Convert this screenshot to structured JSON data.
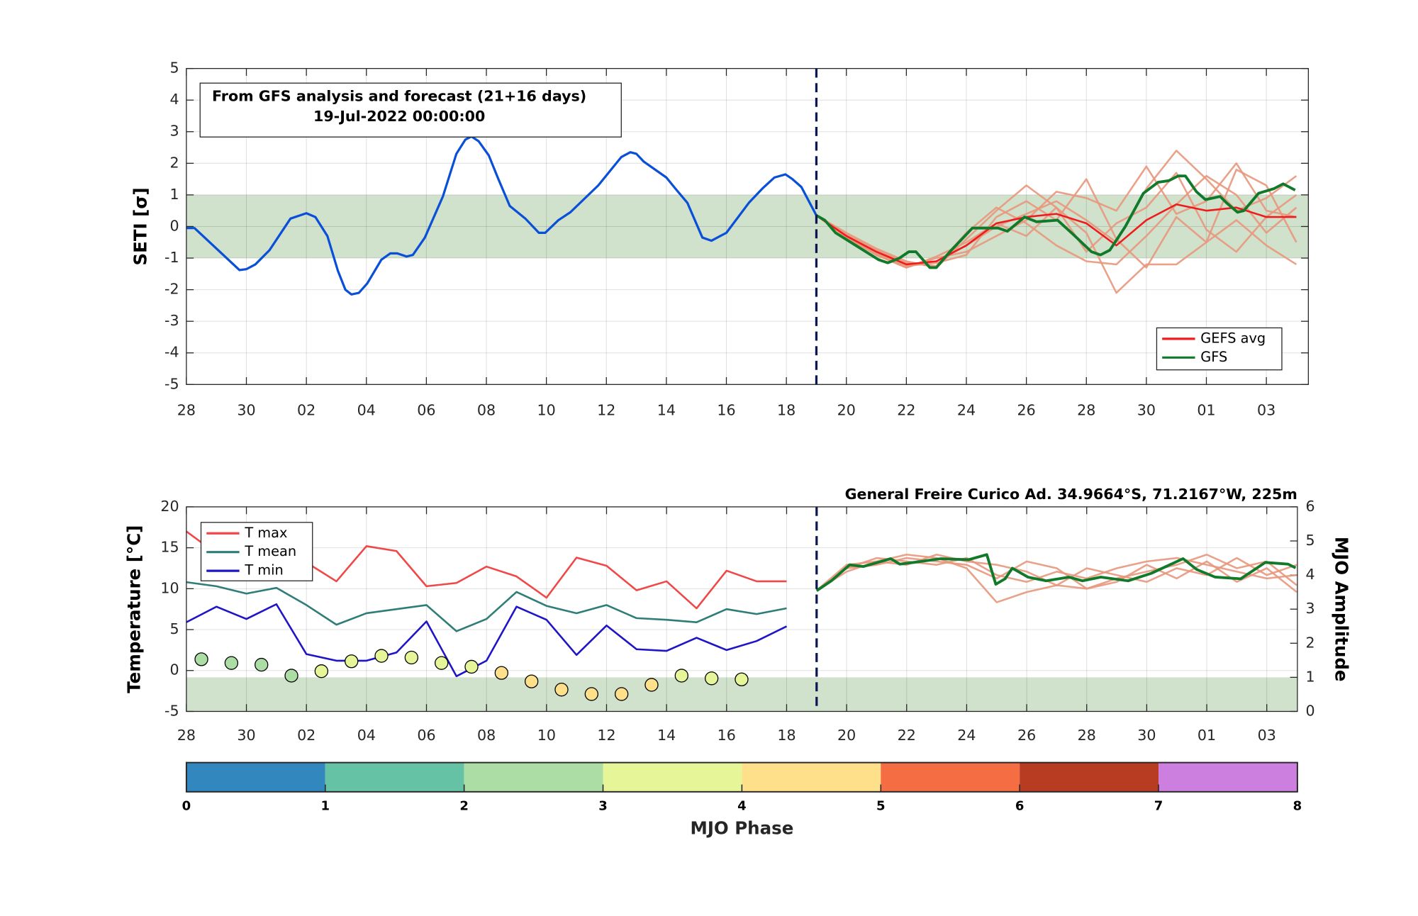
{
  "chart_data": [
    {
      "type": "line",
      "ylabel": "SETI [σ]",
      "annotation": [
        "From GFS analysis and forecast (21+16 days)",
        "19-Jul-2022 00:00:00"
      ],
      "xlim": [
        0,
        37.4
      ],
      "ylim": [
        -5,
        5
      ],
      "xticks": [
        {
          "value": 0,
          "label": "28"
        },
        {
          "value": 2,
          "label": "30"
        },
        {
          "value": 4,
          "label": "02"
        },
        {
          "value": 6,
          "label": "04"
        },
        {
          "value": 8,
          "label": "06"
        },
        {
          "value": 10,
          "label": "08"
        },
        {
          "value": 12,
          "label": "10"
        },
        {
          "value": 14,
          "label": "12"
        },
        {
          "value": 16,
          "label": "14"
        },
        {
          "value": 18,
          "label": "16"
        },
        {
          "value": 20,
          "label": "18"
        },
        {
          "value": 22,
          "label": "20"
        },
        {
          "value": 24,
          "label": "22"
        },
        {
          "value": 26,
          "label": "24"
        },
        {
          "value": 28,
          "label": "26"
        },
        {
          "value": 30,
          "label": "28"
        },
        {
          "value": 32,
          "label": "30"
        },
        {
          "value": 34,
          "label": "01"
        },
        {
          "value": 36,
          "label": "03"
        }
      ],
      "yticks": [
        -5,
        -4,
        -3,
        -2,
        -1,
        0,
        1,
        2,
        3,
        4,
        5
      ],
      "grid": true,
      "legend": "lower right",
      "band": [
        -1,
        1
      ],
      "band_color": "#d0e1cc",
      "forecast_start": 21,
      "analysis": {
        "color": "#0a4fd8",
        "x": [
          0,
          0.27,
          1.77,
          2,
          2.3,
          2.77,
          3.47,
          4,
          4.3,
          4.7,
          5.05,
          5.3,
          5.5,
          5.75,
          6.03,
          6.5,
          6.8,
          7.03,
          7.34,
          7.55,
          7.95,
          8.55,
          9,
          9.3,
          9.5,
          9.74,
          10.08,
          10.4,
          10.78,
          11.3,
          11.75,
          11.96,
          12.4,
          12.8,
          13.73,
          14.5,
          14.8,
          15,
          15.25,
          16,
          16.3,
          16.7,
          17.2,
          17.5,
          18,
          18.75,
          19.2,
          19.6,
          19.97,
          20.2,
          20.5,
          21
        ],
        "values": [
          -0.05,
          -0.05,
          -1.38,
          -1.35,
          -1.2,
          -0.75,
          0.25,
          0.42,
          0.3,
          -0.3,
          -1.4,
          -2,
          -2.15,
          -2.1,
          -1.8,
          -1.05,
          -0.85,
          -0.85,
          -0.95,
          -0.9,
          -0.35,
          0.95,
          2.3,
          2.75,
          2.85,
          2.7,
          2.25,
          1.5,
          0.65,
          0.25,
          -0.2,
          -0.2,
          0.2,
          0.45,
          1.3,
          2.2,
          2.35,
          2.3,
          2.05,
          1.55,
          1.2,
          0.75,
          -0.35,
          -0.45,
          -0.2,
          0.75,
          1.2,
          1.55,
          1.65,
          1.5,
          1.25,
          0.35
        ]
      },
      "members": {
        "color": "#e8977c",
        "x": [
          21,
          22,
          23,
          24,
          25,
          26,
          27,
          28,
          29,
          30,
          31,
          32,
          33,
          34,
          35,
          36,
          37
        ],
        "values": [
          [
            0.35,
            -0.3,
            -0.8,
            -1.2,
            -1.1,
            -0.6,
            0,
            0.4,
            0.8,
            0.2,
            -0.5,
            1.2,
            2.4,
            1.5,
            0.5,
            0.9,
            1.6
          ],
          [
            0.35,
            -0.2,
            -0.7,
            -1.1,
            -1.3,
            -0.4,
            0.5,
            1.3,
            0.6,
            -0.2,
            -2.1,
            -1.2,
            -1.2,
            -0.5,
            0.2,
            -0.6,
            -1.2
          ],
          [
            0.35,
            -0.3,
            -0.9,
            -1.3,
            -1,
            -0.8,
            -0.3,
            0.2,
            1.1,
            0.9,
            0.5,
            1.9,
            0.4,
            0.8,
            2,
            0.5,
            0.3
          ],
          [
            0.35,
            -0.25,
            -0.75,
            -1.15,
            -1.25,
            -0.2,
            0.6,
            0.1,
            -0.6,
            -1.1,
            -1.2,
            -0.3,
            0.7,
            1.6,
            1,
            -0.2,
            0.6
          ],
          [
            0.35,
            -0.3,
            -0.85,
            -1.25,
            -1.15,
            -0.9,
            0.3,
            0.8,
            0.2,
            1.5,
            -0.4,
            -1.3,
            0.3,
            -0.5,
            1.8,
            1.3,
            -0.5
          ],
          [
            0.35,
            -0.35,
            -0.9,
            -1.3,
            -0.95,
            -0.5,
            0.1,
            -0.3,
            0.6,
            -0.8,
            0.1,
            0.6,
            1.7,
            -0.1,
            -0.8,
            0.3,
            1
          ]
        ]
      },
      "series": [
        {
          "name": "GEFS avg",
          "color": "#ee1c1c",
          "x": [
            21,
            22,
            23,
            24,
            25,
            26,
            27,
            28,
            29,
            30,
            31,
            32,
            33,
            34,
            35,
            36,
            37
          ],
          "values": [
            0.35,
            -0.3,
            -0.8,
            -1.2,
            -1.1,
            -0.6,
            0.1,
            0.3,
            0.4,
            0.1,
            -0.6,
            0.2,
            0.7,
            0.5,
            0.6,
            0.3,
            0.3
          ]
        },
        {
          "name": "GFS",
          "color": "#117a2a",
          "x": [
            21,
            21.28,
            21.64,
            22.4,
            23.07,
            23.38,
            23.77,
            24.08,
            24.32,
            24.78,
            25,
            25.45,
            26.2,
            26.67,
            27.06,
            27.37,
            27.94,
            28.34,
            29.04,
            29.56,
            30.17,
            30.47,
            30.78,
            31.3,
            31.9,
            32.39,
            32.75,
            33.06,
            33.3,
            33.67,
            33.97,
            34.46,
            34.67,
            35.04,
            35.25,
            35.74,
            36.26,
            36.56,
            36.96
          ],
          "values": [
            0.35,
            0.2,
            -0.2,
            -0.65,
            -1.05,
            -1.15,
            -1,
            -0.8,
            -0.8,
            -1.3,
            -1.3,
            -0.8,
            -0.05,
            -0.05,
            -0.05,
            -0.15,
            0.3,
            0.15,
            0.2,
            -0.25,
            -0.8,
            -0.9,
            -0.75,
            0,
            1.05,
            1.4,
            1.45,
            1.6,
            1.6,
            1.1,
            0.85,
            0.95,
            0.75,
            0.45,
            0.5,
            1.05,
            1.2,
            1.35,
            1.15
          ]
        }
      ]
    },
    {
      "type": "line",
      "title": "General Freire Curico Ad. 34.9664°S, 71.2167°W, 225m",
      "ylabel": "Temperature [°C]",
      "y2label": "MJO Amplitude",
      "xlim": [
        0,
        37.02
      ],
      "ylim": [
        -5,
        20
      ],
      "y2lim": [
        0,
        6
      ],
      "xticks": [
        {
          "value": 0,
          "label": "28"
        },
        {
          "value": 2,
          "label": "30"
        },
        {
          "value": 4,
          "label": "02"
        },
        {
          "value": 6,
          "label": "04"
        },
        {
          "value": 8,
          "label": "06"
        },
        {
          "value": 10,
          "label": "08"
        },
        {
          "value": 12,
          "label": "10"
        },
        {
          "value": 14,
          "label": "12"
        },
        {
          "value": 16,
          "label": "14"
        },
        {
          "value": 18,
          "label": "16"
        },
        {
          "value": 20,
          "label": "18"
        },
        {
          "value": 22,
          "label": "20"
        },
        {
          "value": 24,
          "label": "22"
        },
        {
          "value": 26,
          "label": "24"
        },
        {
          "value": 28,
          "label": "26"
        },
        {
          "value": 30,
          "label": "28"
        },
        {
          "value": 32,
          "label": "30"
        },
        {
          "value": 34,
          "label": "01"
        },
        {
          "value": 36,
          "label": "03"
        }
      ],
      "yticks": [
        -5,
        0,
        5,
        10,
        15,
        20
      ],
      "y2ticks": [
        0,
        1,
        2,
        3,
        4,
        5,
        6
      ],
      "grid": true,
      "legend": "upper left",
      "band": [
        0,
        1
      ],
      "band_axis": "y2",
      "band_color": "#d0e1cc",
      "forecast_start": 21,
      "x": [
        0,
        1,
        2,
        3,
        4,
        5,
        6,
        7,
        8,
        9,
        10,
        11,
        12,
        13,
        14,
        15,
        16,
        17,
        18,
        19,
        20
      ],
      "series": [
        {
          "name": "T max",
          "color": "#f04848",
          "values": [
            17,
            14.3,
            14.8,
            14.3,
            13.2,
            10.9,
            15.2,
            14.6,
            10.3,
            10.7,
            12.7,
            11.5,
            8.9,
            13.8,
            12.8,
            9.8,
            10.9,
            7.6,
            12.2,
            10.9,
            10.9
          ]
        },
        {
          "name": "T mean",
          "color": "#2e7d78",
          "values": [
            10.8,
            10.3,
            9.4,
            10.1,
            8,
            5.6,
            7,
            7.5,
            8,
            4.8,
            6.3,
            9.6,
            7.9,
            7,
            8,
            6.4,
            6.2,
            5.9,
            7.5,
            6.9,
            7.6
          ]
        },
        {
          "name": "T min",
          "color": "#1f14c8",
          "values": [
            5.9,
            7.8,
            6.3,
            8.1,
            2,
            1.2,
            1.2,
            2.2,
            6,
            -0.7,
            1.2,
            7.8,
            6.2,
            1.9,
            5.5,
            2.6,
            2.4,
            4,
            2.5,
            3.6,
            5.4
          ]
        }
      ],
      "mjo_points": {
        "axis": "y2",
        "x": [
          0.5,
          1.5,
          2.5,
          3.5,
          4.5,
          5.5,
          6.5,
          7.5,
          8.5,
          9.5,
          10.5,
          11.5,
          12.5,
          13.5,
          14.5,
          15.5,
          16.5,
          17.5,
          18.5
        ],
        "values": [
          1.53,
          1.42,
          1.37,
          1.05,
          1.18,
          1.47,
          1.63,
          1.58,
          1.42,
          1.31,
          1.13,
          0.88,
          0.64,
          0.51,
          0.51,
          0.78,
          1.05,
          0.97,
          0.94
        ],
        "phase": [
          2.5,
          2.5,
          2.5,
          2.5,
          3.5,
          3.5,
          3.5,
          3.5,
          3.5,
          3.5,
          4.5,
          4.5,
          4.5,
          4.5,
          4.5,
          4.5,
          3.5,
          3.5,
          3.5
        ]
      },
      "amplitude_forecast": {
        "axis": "y2",
        "color": "#117a2a",
        "x": [
          21,
          21.49,
          22.1,
          22.56,
          23.47,
          23.77,
          24.23,
          25.14,
          26.06,
          26.67,
          26.97,
          27.28,
          27.52,
          28.04,
          28.65,
          29.41,
          29.86,
          30.47,
          31.38,
          32.15,
          33.21,
          33.67,
          34.28,
          35.13,
          35.95,
          36.71,
          36.96
        ],
        "values": [
          3.54,
          3.83,
          4.3,
          4.25,
          4.48,
          4.32,
          4.37,
          4.48,
          4.45,
          4.6,
          3.73,
          3.89,
          4.2,
          3.94,
          3.83,
          3.94,
          3.83,
          3.94,
          3.83,
          4.05,
          4.48,
          4.16,
          3.94,
          3.89,
          4.37,
          4.32,
          4.21
        ]
      },
      "members": {
        "axis": "y2",
        "color": "#e8977c",
        "x": [
          21,
          22,
          23,
          24,
          25,
          26,
          27,
          28,
          29,
          30,
          31,
          32,
          33,
          34,
          35,
          36,
          37
        ],
        "values": [
          [
            3.55,
            4.2,
            4.5,
            4.4,
            4.3,
            4.5,
            4,
            3.8,
            4.1,
            3.9,
            4.2,
            4.4,
            4.5,
            4.3,
            4.1,
            3.9,
            4
          ],
          [
            3.55,
            4.1,
            4.4,
            4.6,
            4.5,
            4.2,
            3.2,
            3.5,
            3.7,
            3.6,
            3.9,
            4.1,
            4.3,
            4.6,
            4.2,
            4.4,
            3.7
          ],
          [
            3.55,
            4.3,
            4.4,
            4.3,
            4.6,
            4.4,
            4.3,
            4.1,
            3.7,
            4.2,
            4,
            3.8,
            4.2,
            4,
            4.5,
            4,
            4.3
          ],
          [
            3.55,
            4.2,
            4.3,
            4.5,
            4.4,
            4.3,
            3.9,
            4.4,
            4.2,
            3.6,
            3.8,
            4.3,
            3.9,
            4.4,
            3.8,
            4.2,
            3.5
          ]
        ]
      }
    },
    {
      "type": "colorbar",
      "label": "MJO Phase",
      "lim": [
        0,
        8
      ],
      "ticks": [
        0,
        1,
        2,
        3,
        4,
        5,
        6,
        7,
        8
      ],
      "colors": [
        "#3288be",
        "#66c2a5",
        "#abdda4",
        "#e6f598",
        "#fee08b",
        "#f46d43",
        "#b73c22",
        "#cc7fdf"
      ]
    }
  ]
}
